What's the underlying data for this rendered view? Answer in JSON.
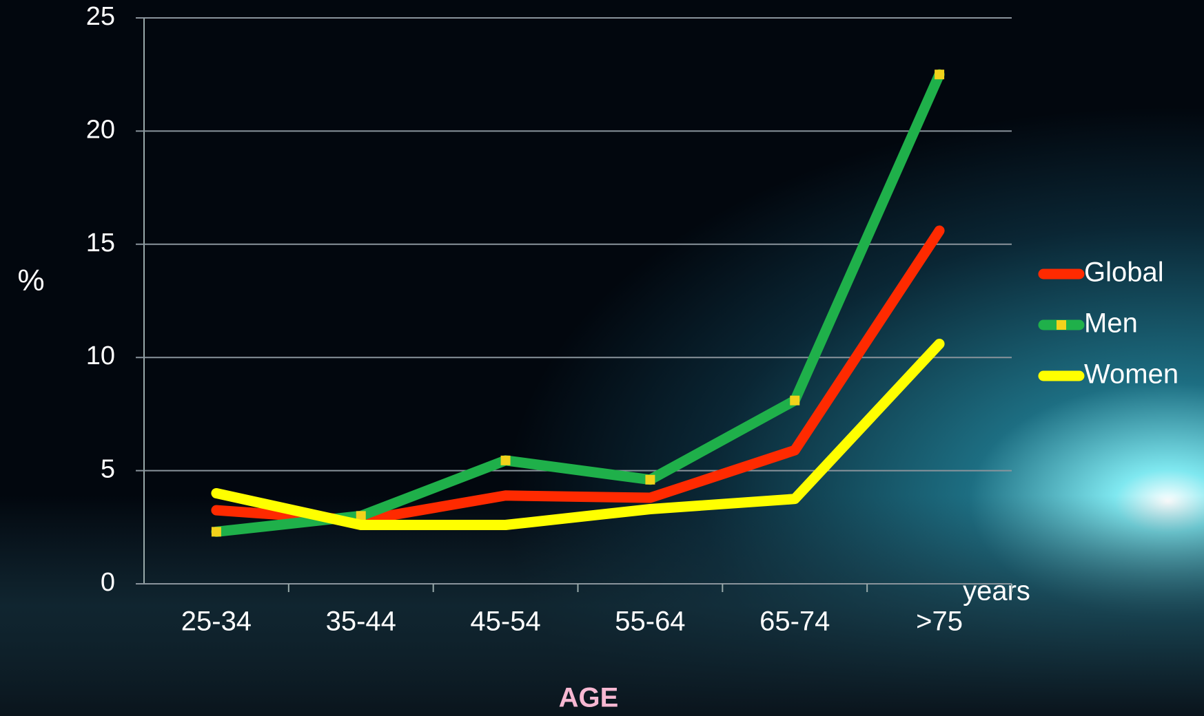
{
  "chart_data": {
    "type": "line",
    "y_label": "%",
    "x_label": "AGE",
    "annotation": "years",
    "categories": [
      "25-34",
      "35-44",
      "45-54",
      "55-64",
      "65-74",
      ">75"
    ],
    "series": [
      {
        "name": "Global",
        "color": "#ff2a00",
        "values": [
          3.25,
          2.8,
          3.9,
          3.8,
          5.9,
          15.6
        ]
      },
      {
        "name": "Men",
        "color": "#1fb04a",
        "marker_color": "#f2d21b",
        "values": [
          2.3,
          3.0,
          5.45,
          4.6,
          8.1,
          22.5
        ]
      },
      {
        "name": "Women",
        "color": "#ffff00",
        "values": [
          4.0,
          2.6,
          2.6,
          3.3,
          3.75,
          10.6
        ]
      }
    ],
    "ylim": [
      0,
      25
    ],
    "yticks": [
      0,
      5,
      10,
      15,
      20,
      25
    ],
    "grid": true,
    "legend": "right"
  }
}
